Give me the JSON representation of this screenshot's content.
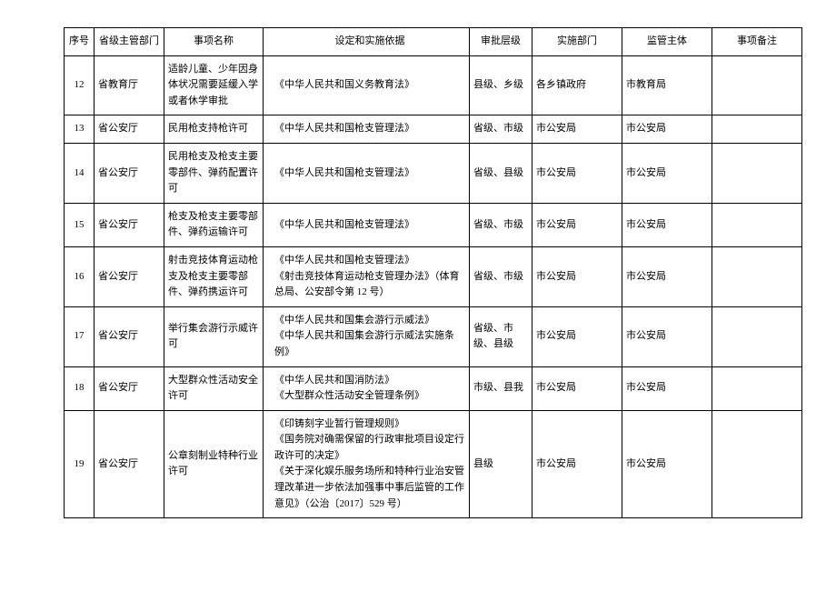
{
  "table": {
    "headers": {
      "seq": "序号",
      "dept": "省级主管部门",
      "name": "事项名称",
      "basis": "设定和实施依据",
      "level": "审批层级",
      "impl": "实施部门",
      "super": "监管主体",
      "remark": "事项备注"
    },
    "rows": [
      {
        "seq": "12",
        "dept": "省教育厅",
        "name": "适龄儿童、少年因身体状况需要延缓入学或者休学审批",
        "basis": "《中华人民共和国义务教育法》",
        "level": "县级、乡级",
        "impl": "各乡镇政府",
        "super": "市教育局",
        "remark": ""
      },
      {
        "seq": "13",
        "dept": "省公安厅",
        "name": "民用枪支持枪许可",
        "basis": "《中华人民共和国枪支管理法》",
        "level": "省级、市级",
        "impl": "市公安局",
        "super": "市公安局",
        "remark": ""
      },
      {
        "seq": "14",
        "dept": "省公安厅",
        "name": "民用枪支及枪支主要零部件、弹药配置许可",
        "basis": "《中华人民共和国枪支管理法》",
        "level": "省级、县级",
        "impl": "市公安局",
        "super": "市公安局",
        "remark": ""
      },
      {
        "seq": "15",
        "dept": "省公安厅",
        "name": "枪支及枪支主要零部件、弹药运输许可",
        "basis": "《中华人民共和国枪支管理法》",
        "level": "省级、市级",
        "impl": "市公安局",
        "super": "市公安局",
        "remark": ""
      },
      {
        "seq": "16",
        "dept": "省公安厅",
        "name": "射击竞技体育运动枪支及枪支主要零部件、弹药携运许可",
        "basis": "《中华人民共和国枪支管理法》\n《射击竞技体育运动枪支管理办法》（体育总局、公安部令第 12 号）",
        "level": "省级、市级",
        "impl": "市公安局",
        "super": "市公安局",
        "remark": ""
      },
      {
        "seq": "17",
        "dept": "省公安厅",
        "name": "举行集会游行示威许可",
        "basis": "《中华人民共和国集会游行示威法》\n《中华人民共和国集会游行示威法实施条例》",
        "level": "省级、市级、县级",
        "impl": "市公安局",
        "super": "市公安局",
        "remark": ""
      },
      {
        "seq": "18",
        "dept": "省公安厅",
        "name": "大型群众性活动安全许可",
        "basis": "《中华人民共和国消防法》\n《大型群众性活动安全管理条例》",
        "level": "市级、县我",
        "impl": "市公安局",
        "super": "市公安局",
        "remark": ""
      },
      {
        "seq": "19",
        "dept": "省公安厅",
        "name": "公章刻制业特种行业许可",
        "basis": "《印铸刻字业暂行管理规则》\n《国务院对确需保留的行政审批项目设定行政许可的决定》\n《关于深化娱乐服务场所和特种行业治安管理改革进一步依法加强事中事后监管的工作意见》（公治〔2017〕529 号）",
        "level": "县级",
        "impl": "市公安局",
        "super": "市公安局",
        "remark": ""
      }
    ]
  }
}
